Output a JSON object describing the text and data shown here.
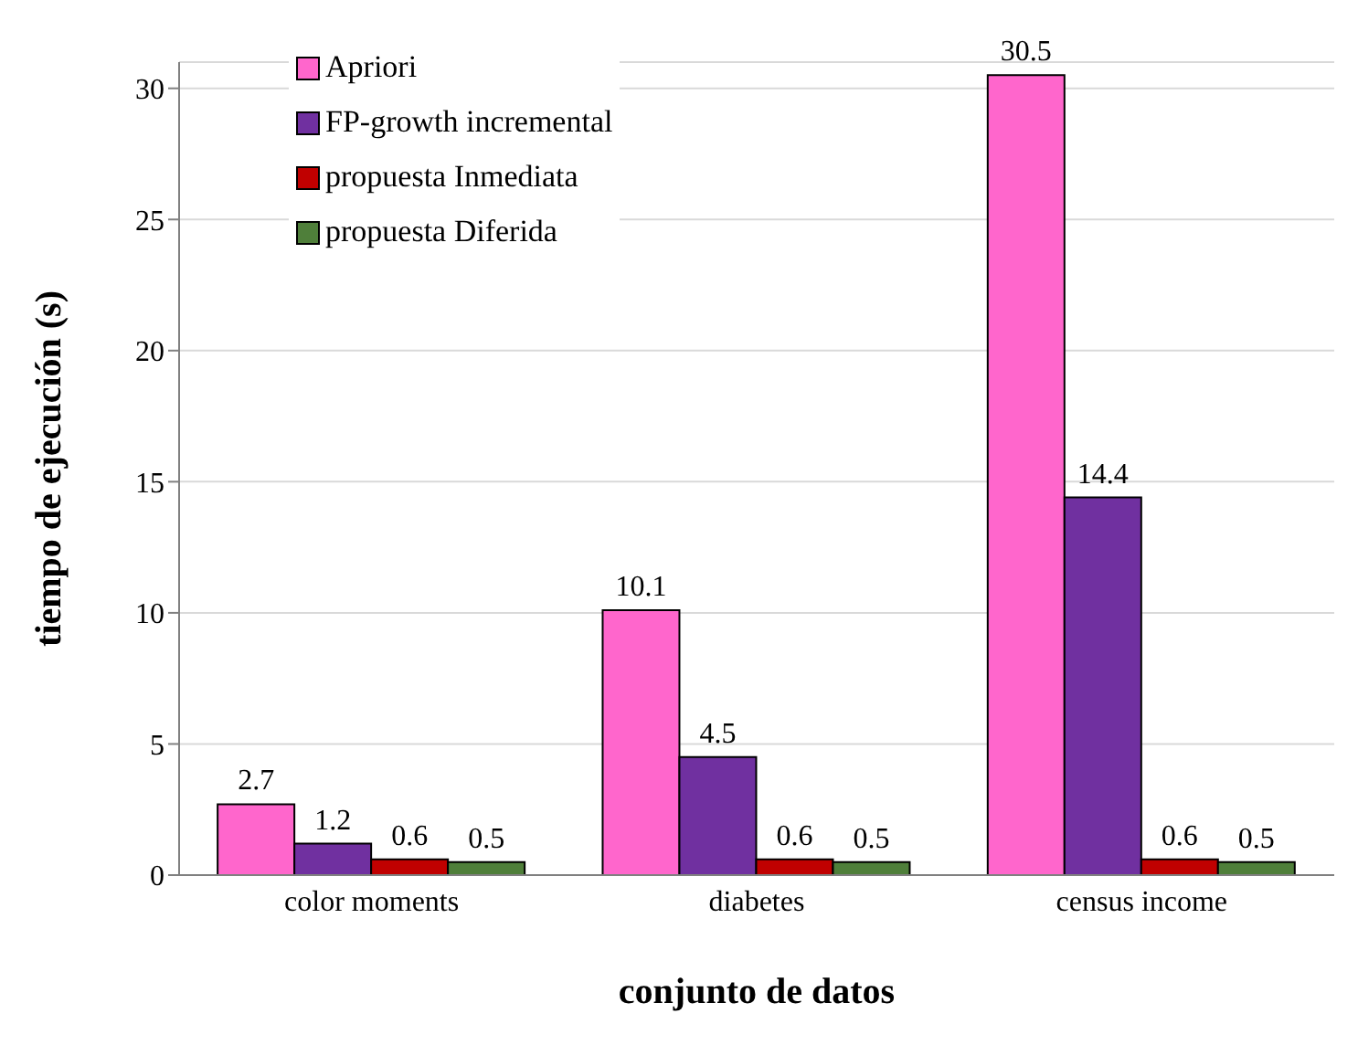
{
  "chart_data": {
    "type": "bar",
    "xlabel": "conjunto de datos",
    "ylabel": "tiempo de ejecución (s)",
    "categories": [
      "color moments",
      "diabetes",
      "census income"
    ],
    "series": [
      {
        "name": "Apriori",
        "color": "#ff66cc",
        "values": [
          2.7,
          10.1,
          30.5
        ]
      },
      {
        "name": "FP-growth incremental",
        "color": "#7030a0",
        "values": [
          1.2,
          4.5,
          14.4
        ]
      },
      {
        "name": "propuesta Inmediata",
        "color": "#c00000",
        "values": [
          0.6,
          0.6,
          0.6
        ]
      },
      {
        "name": "propuesta Diferida",
        "color": "#4f7f3a",
        "values": [
          0.5,
          0.5,
          0.5
        ]
      }
    ],
    "ylim": [
      0,
      31
    ],
    "yticks": [
      0,
      5,
      10,
      15,
      20,
      25,
      30
    ],
    "grid": "y",
    "legend": "top left",
    "data_labels": true
  }
}
